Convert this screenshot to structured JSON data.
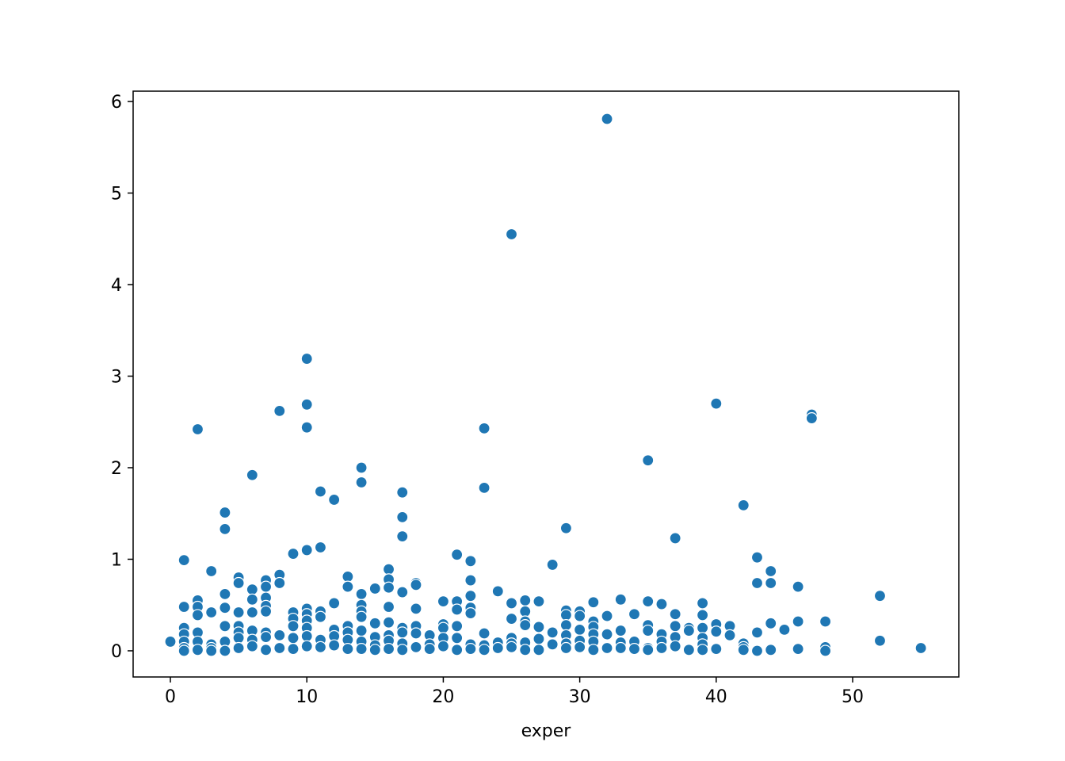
{
  "chart_data": {
    "type": "scatter",
    "x_label": "exper",
    "color": "#1f77b4",
    "xlim": [
      -2.73,
      57.78
    ],
    "ylim": [
      -0.286,
      6.113
    ],
    "xticks": [
      0,
      10,
      20,
      30,
      40,
      50
    ],
    "yticks": [
      0,
      1,
      2,
      3,
      4,
      5,
      6
    ],
    "x": [
      0,
      1,
      1,
      1,
      1,
      1,
      1,
      1,
      2,
      2,
      2,
      2,
      2,
      2,
      2,
      3,
      3,
      3,
      3,
      3,
      4,
      4,
      4,
      4,
      4,
      4,
      4,
      5,
      5,
      5,
      5,
      5,
      5,
      5,
      6,
      6,
      6,
      6,
      6,
      6,
      6,
      7,
      7,
      7,
      7,
      7,
      7,
      7,
      7,
      8,
      8,
      8,
      8,
      8,
      9,
      9,
      9,
      9,
      9,
      9,
      10,
      10,
      10,
      10,
      10,
      10,
      10,
      10,
      10,
      10,
      11,
      11,
      11,
      11,
      11,
      11,
      12,
      12,
      12,
      12,
      12,
      13,
      13,
      13,
      13,
      13,
      13,
      14,
      14,
      14,
      14,
      14,
      14,
      14,
      14,
      14,
      15,
      15,
      15,
      15,
      15,
      16,
      16,
      16,
      16,
      16,
      16,
      16,
      16,
      17,
      17,
      17,
      17,
      17,
      17,
      17,
      17,
      18,
      18,
      18,
      18,
      18,
      18,
      19,
      19,
      19,
      20,
      20,
      20,
      20,
      20,
      21,
      21,
      21,
      21,
      21,
      21,
      22,
      22,
      22,
      22,
      22,
      22,
      22,
      23,
      23,
      23,
      23,
      23,
      24,
      24,
      24,
      25,
      25,
      25,
      25,
      25,
      25,
      26,
      26,
      26,
      26,
      26,
      26,
      27,
      27,
      27,
      27,
      28,
      28,
      28,
      29,
      29,
      29,
      29,
      29,
      29,
      29,
      30,
      30,
      30,
      30,
      30,
      31,
      31,
      31,
      31,
      31,
      31,
      32,
      32,
      32,
      32,
      33,
      33,
      33,
      33,
      34,
      34,
      34,
      35,
      35,
      35,
      35,
      35,
      35,
      36,
      36,
      36,
      36,
      37,
      37,
      37,
      37,
      37,
      38,
      38,
      38,
      39,
      39,
      39,
      39,
      39,
      39,
      40,
      40,
      40,
      40,
      41,
      41,
      42,
      42,
      42,
      42,
      43,
      43,
      43,
      43,
      44,
      44,
      44,
      44,
      45,
      46,
      46,
      46,
      47,
      47,
      48,
      48,
      48,
      52,
      52,
      55
    ],
    "values": [
      0.1,
      0.99,
      0.48,
      0.25,
      0.18,
      0.1,
      0.03,
      0.0,
      2.42,
      0.55,
      0.48,
      0.39,
      0.2,
      0.1,
      0.01,
      0.87,
      0.42,
      0.07,
      0.03,
      0.0,
      1.51,
      1.33,
      0.62,
      0.47,
      0.27,
      0.1,
      0.0,
      0.8,
      0.74,
      0.42,
      0.27,
      0.2,
      0.14,
      0.03,
      1.92,
      0.67,
      0.56,
      0.42,
      0.22,
      0.12,
      0.05,
      0.77,
      0.7,
      0.58,
      0.49,
      0.43,
      0.2,
      0.15,
      0.01,
      2.62,
      0.83,
      0.74,
      0.17,
      0.03,
      1.06,
      0.42,
      0.35,
      0.27,
      0.14,
      0.02,
      3.19,
      2.69,
      2.44,
      1.1,
      0.46,
      0.4,
      0.33,
      0.25,
      0.16,
      0.05,
      1.74,
      1.13,
      0.43,
      0.37,
      0.12,
      0.04,
      1.65,
      0.52,
      0.23,
      0.16,
      0.06,
      0.81,
      0.7,
      0.27,
      0.2,
      0.12,
      0.02,
      2.0,
      1.84,
      0.62,
      0.5,
      0.43,
      0.37,
      0.22,
      0.1,
      0.02,
      0.68,
      0.3,
      0.15,
      0.06,
      0.01,
      0.89,
      0.78,
      0.69,
      0.48,
      0.31,
      0.17,
      0.11,
      0.02,
      1.73,
      1.46,
      1.25,
      0.64,
      0.25,
      0.2,
      0.08,
      0.01,
      0.74,
      0.72,
      0.46,
      0.27,
      0.19,
      0.04,
      0.17,
      0.07,
      0.02,
      0.54,
      0.29,
      0.25,
      0.14,
      0.05,
      1.05,
      0.54,
      0.45,
      0.27,
      0.14,
      0.01,
      0.98,
      0.77,
      0.6,
      0.47,
      0.41,
      0.07,
      0.02,
      2.43,
      1.78,
      0.19,
      0.06,
      0.01,
      0.65,
      0.09,
      0.03,
      4.55,
      0.52,
      0.35,
      0.14,
      0.08,
      0.04,
      0.55,
      0.43,
      0.32,
      0.28,
      0.09,
      0.01,
      0.54,
      0.26,
      0.13,
      0.01,
      0.94,
      0.2,
      0.07,
      1.34,
      0.44,
      0.39,
      0.28,
      0.17,
      0.08,
      0.03,
      0.43,
      0.38,
      0.23,
      0.11,
      0.04,
      0.53,
      0.32,
      0.26,
      0.18,
      0.1,
      0.01,
      5.81,
      0.38,
      0.18,
      0.03,
      0.56,
      0.22,
      0.09,
      0.03,
      0.4,
      0.1,
      0.02,
      2.08,
      0.54,
      0.28,
      0.22,
      0.03,
      0.01,
      0.51,
      0.18,
      0.1,
      0.03,
      1.23,
      0.4,
      0.27,
      0.15,
      0.05,
      0.25,
      0.22,
      0.01,
      0.52,
      0.39,
      0.25,
      0.14,
      0.07,
      0.01,
      2.7,
      0.29,
      0.21,
      0.02,
      0.27,
      0.17,
      1.59,
      0.08,
      0.04,
      0.01,
      1.02,
      0.74,
      0.2,
      0.0,
      0.87,
      0.74,
      0.3,
      0.01,
      0.23,
      0.7,
      0.32,
      0.02,
      2.58,
      2.54,
      0.32,
      0.04,
      0.0,
      0.6,
      0.11,
      0.03
    ]
  }
}
